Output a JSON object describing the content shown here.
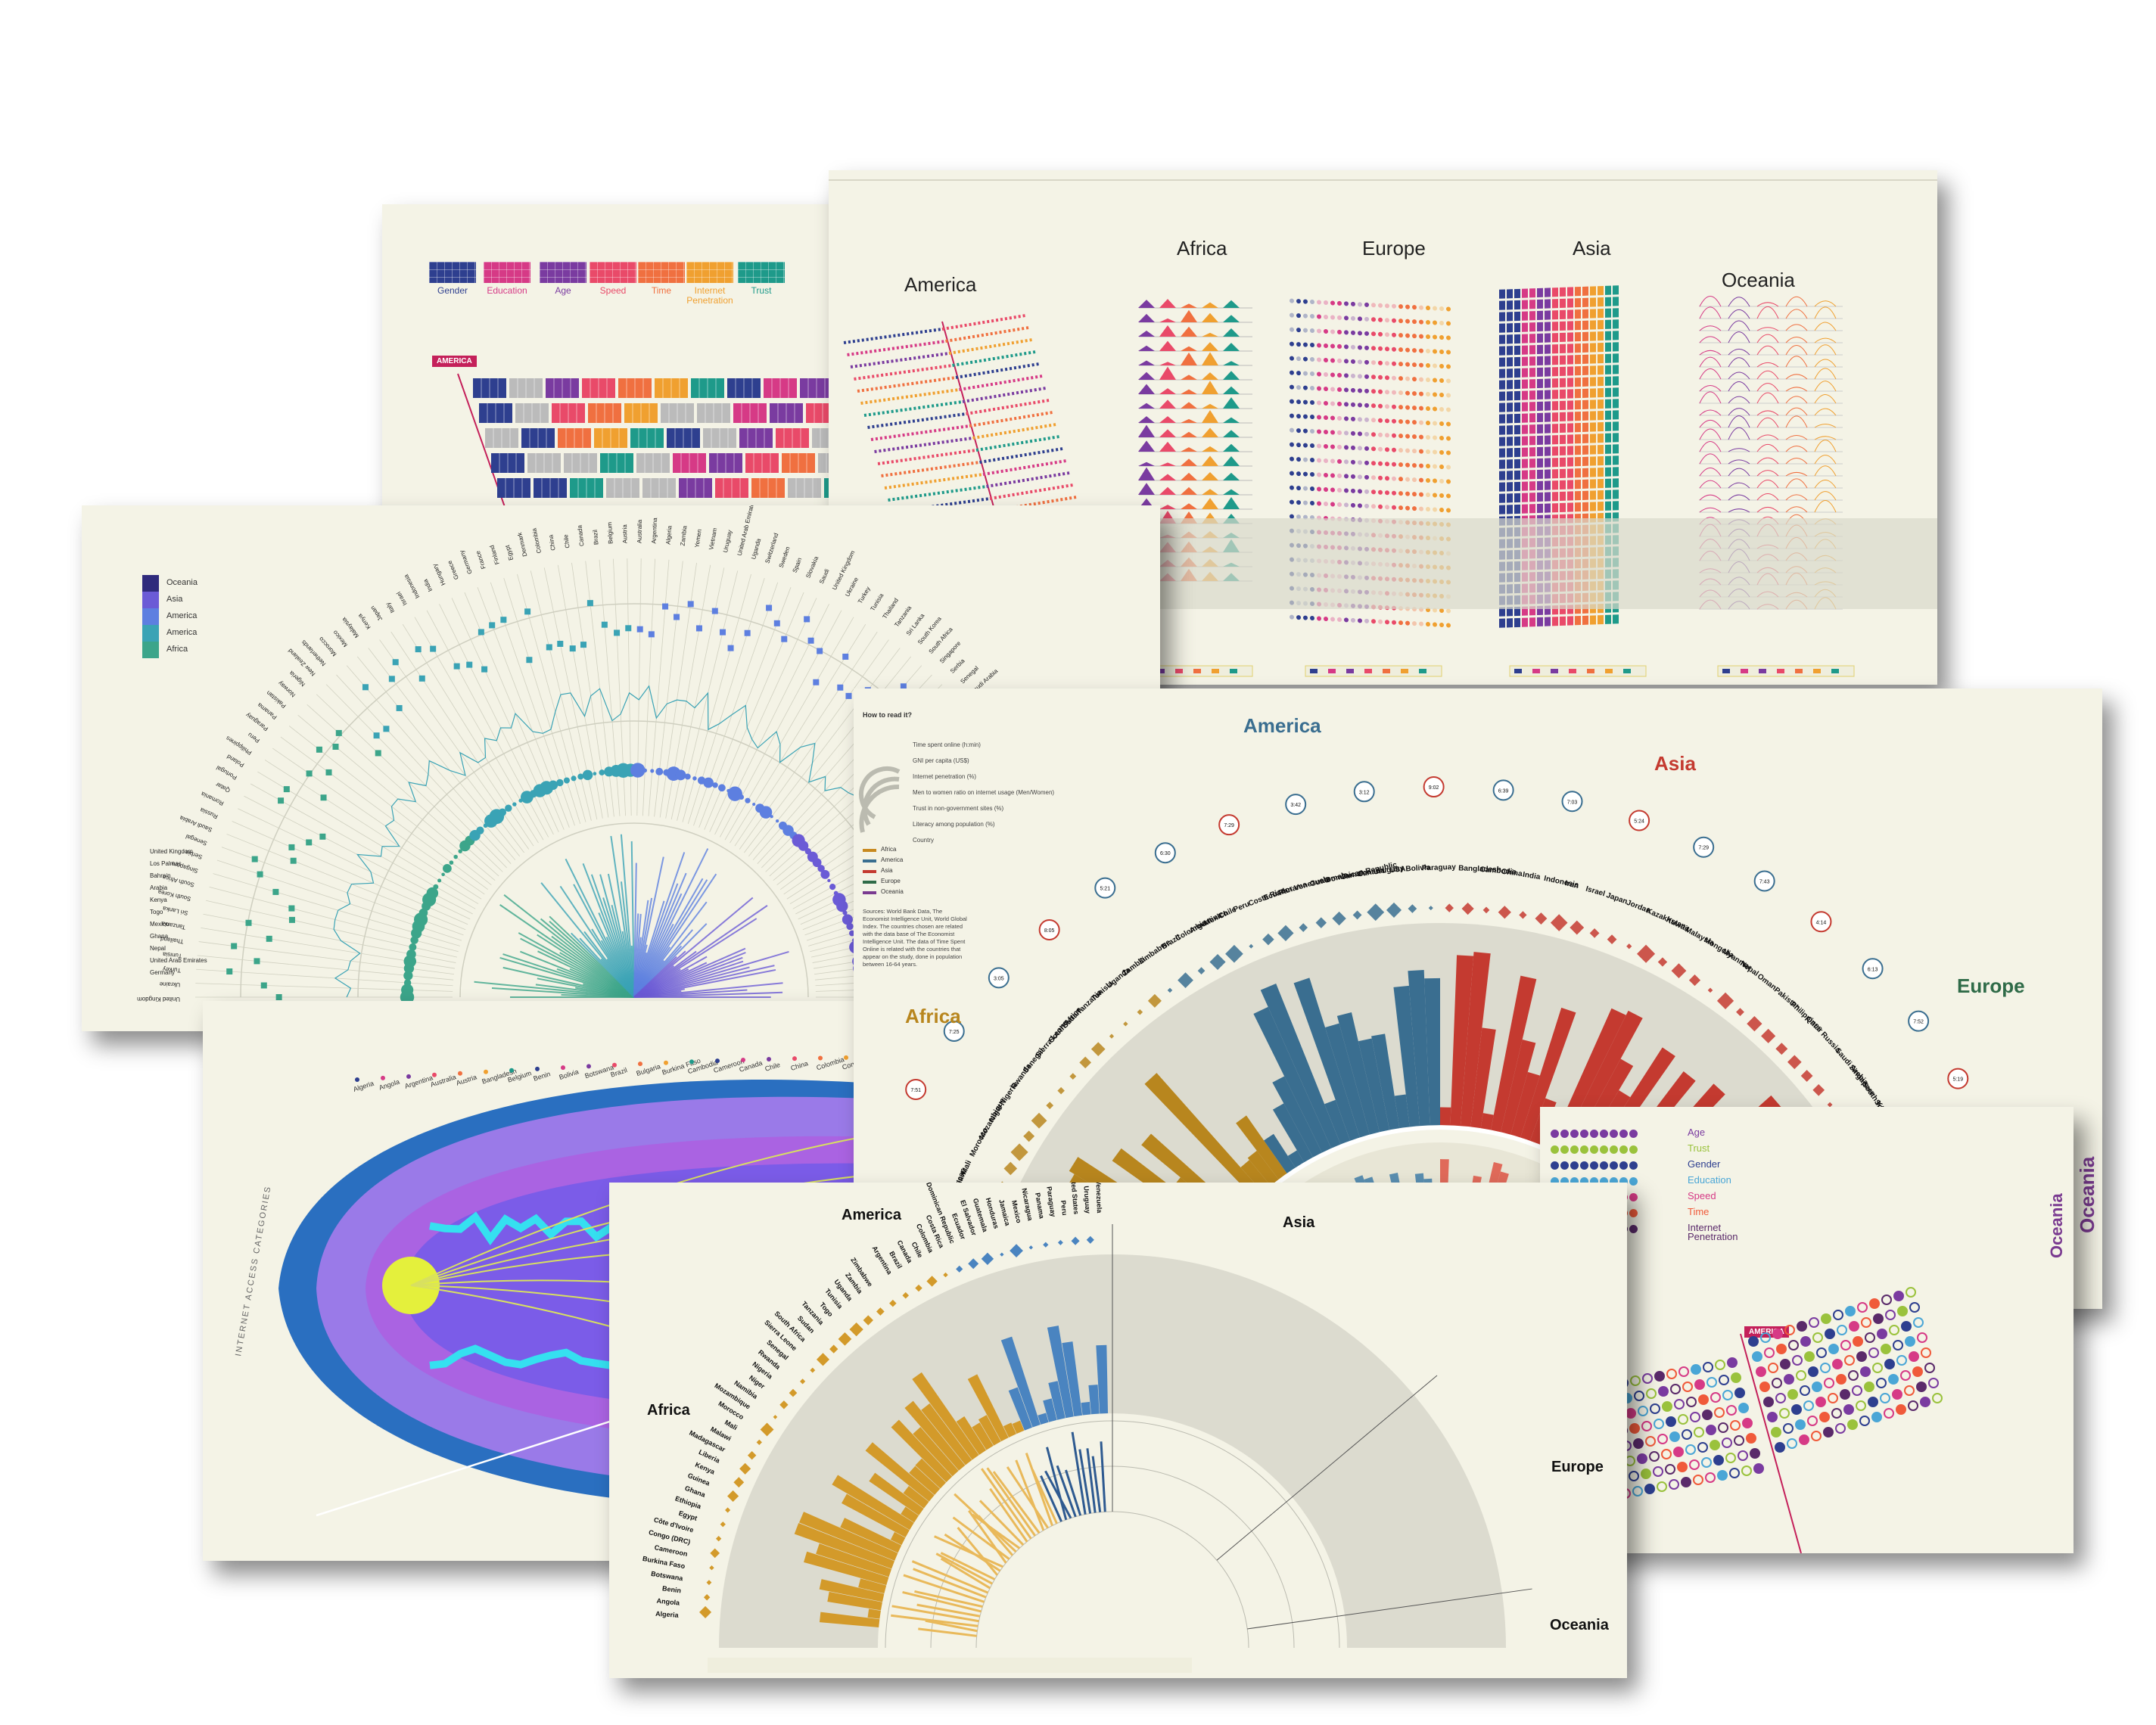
{
  "card_a": {
    "categories": [
      {
        "label": "Gender",
        "color": "#2e3f8f"
      },
      {
        "label": "Education",
        "color": "#d63a86"
      },
      {
        "label": "Age",
        "color": "#7a3ba0"
      },
      {
        "label": "Speed",
        "color": "#e94a69"
      },
      {
        "label": "Time",
        "color": "#f07040"
      },
      {
        "label": "Internet Penetration",
        "color": "#f0a030"
      },
      {
        "label": "Trust",
        "color": "#1e9a8a"
      }
    ],
    "tag": "AMERICA"
  },
  "card_b": {
    "regions": [
      "America",
      "Africa",
      "Europe",
      "Asia",
      "Oceania"
    ]
  },
  "card_c": {
    "legend": [
      {
        "label": "Oceania",
        "color": "#2f2a7c"
      },
      {
        "label": "Asia",
        "color": "#6b5bd6"
      },
      {
        "label": "America",
        "color": "#5d7fe0"
      },
      {
        "label": "America",
        "color": "#3aa3b5"
      },
      {
        "label": "Africa",
        "color": "#3ca58a"
      }
    ],
    "countries": [
      "United Kingdom",
      "Ukraine",
      "Turkey",
      "Tunisia",
      "Thailand",
      "Tanzania",
      "Sri Lanka",
      "South Korea",
      "South Africa",
      "Singapore",
      "Serbia",
      "Senegal",
      "Saudi Arabia",
      "Russia",
      "Romania",
      "Qatar",
      "Portugal",
      "Poland",
      "Philippines",
      "Peru",
      "Paraguay",
      "Panama",
      "Pakistan",
      "Norway",
      "Nigeria",
      "New Zealand",
      "Netherlands",
      "Morocco",
      "Mexico",
      "Malaysia",
      "Kenya",
      "Japan",
      "Italy",
      "Israel",
      "Indonesia",
      "India",
      "Hungary",
      "Greece",
      "Germany",
      "France",
      "Finland",
      "Egypt",
      "Denmark",
      "Colombia",
      "China",
      "Chile",
      "Canada",
      "Brazil",
      "Belgium",
      "Austria",
      "Australia",
      "Argentina",
      "Algeria",
      "Zambia",
      "Yemen",
      "Vietnam",
      "Uruguay",
      "United Arab Emirates",
      "Uganda",
      "Switzerland",
      "Sweden",
      "Spain",
      "Slovakia",
      "Saudi"
    ],
    "left_labels": [
      "United Kingdom",
      "Los Palmas",
      "Bahrain",
      "Arabia",
      "Kenya",
      "Togo",
      "Mexico",
      "Ghana",
      "Nepal",
      "United Arab Emirates",
      "Germany"
    ]
  },
  "card_d": {
    "side_label": "INTERNET ACCESS CATEGORIES",
    "countries": [
      "Algeria",
      "Angola",
      "Argentina",
      "Australia",
      "Austria",
      "Bangladesh",
      "Belgium",
      "Benin",
      "Bolivia",
      "Botswana",
      "Brazil",
      "Bulgaria",
      "Burkina Faso",
      "Cambodia",
      "Cameroon",
      "Canada",
      "Chile",
      "China",
      "Colombia",
      "Congo (DRC)",
      "Costa Rica",
      "Côte d'Ivoire"
    ]
  },
  "card_e": {
    "how_to_read": "How to read it?",
    "guide": [
      "Time spent online (h:min)",
      "GNI per capita (US$)",
      "Internet penetration (%)",
      "Men to women ratio on internet usage (Men/Women)",
      "Trust in non-government sites (%)",
      "Literacy among population (%)",
      "Country"
    ],
    "legend": [
      {
        "label": "Africa",
        "color": "#c88a20"
      },
      {
        "label": "America",
        "color": "#3a6e90"
      },
      {
        "label": "Asia",
        "color": "#c43a30"
      },
      {
        "label": "Europe",
        "color": "#2f6b48"
      },
      {
        "label": "Oceania",
        "color": "#7a3a90"
      }
    ],
    "sources": "Sources: World Bank Data, The Economist Intelligence Unit, World Global Index. The countries chosen are related with the data base of The Economist Intelligence Unit. The data of Time Spent Online is related with the countries that appear on the study, done in population between 16-64 years.",
    "regions": {
      "america": "America",
      "asia": "Asia",
      "africa": "Africa",
      "europe": "Europe",
      "oceania": "Oceania"
    },
    "america_countries": [
      "Brazil",
      "Colombia",
      "Argentina",
      "Mexico",
      "Chile",
      "Peru",
      "Costa Rica",
      "Ecuador",
      "Panama",
      "Venezuela",
      "Guatemala",
      "Dominican Republic",
      "Jamaica",
      "Canada",
      "Uruguay",
      "USA",
      "Bolivia",
      "Paraguay"
    ],
    "asia_countries": [
      "Bangladesh",
      "Cambodia",
      "China",
      "India",
      "Indonesia",
      "Iran",
      "Israel",
      "Japan",
      "Jordan",
      "Kazakhstan",
      "Kuwait",
      "Malaysia",
      "Mongolia",
      "Myanmar",
      "Nepal",
      "Oman",
      "Pakistan",
      "Philippines",
      "Qatar",
      "Russia",
      "Saudi Arabia",
      "Singapore",
      "South Korea",
      "Sri Lanka",
      "Taiwan",
      "Thailand",
      "Turkey",
      "United Arab Emirates",
      "Vietnam"
    ],
    "europe_countries": [
      "Austria",
      "Belgium",
      "Bulgaria",
      "Czech Republic",
      "Denmark",
      "Estonia",
      "Finland",
      "France",
      "Germany",
      "Greece",
      "Hungary",
      "Ireland"
    ],
    "africa_countries": [
      "Côte d'Ivoire",
      "Egypt",
      "Ethiopia",
      "Ghana",
      "Guinea",
      "Kenya",
      "Liberia",
      "Madagascar",
      "Malawi",
      "Mali",
      "Morocco",
      "Mozambique",
      "Niger",
      "Nigeria",
      "Rwanda",
      "Senegal",
      "Sierra Leone",
      "South Africa",
      "Sudan",
      "Tanzania",
      "Tunisia",
      "Uganda",
      "Zambia",
      "Zimbabwe"
    ],
    "badges": [
      "7:51",
      "7:25",
      "3:05",
      "8:05",
      "5:21",
      "6:30",
      "7:29",
      "3:42",
      "3:12",
      "9:02",
      "6:39",
      "7:03",
      "5:24",
      "7:29",
      "7:43",
      "4:14",
      "6:13",
      "7:52",
      "5:19",
      "3:28",
      "5:14"
    ]
  },
  "card_f": {
    "legend": [
      {
        "label": "Age",
        "color": "#7a3ba0"
      },
      {
        "label": "Trust",
        "color": "#9ac23c"
      },
      {
        "label": "Gender",
        "color": "#2e3f8f"
      },
      {
        "label": "Education",
        "color": "#4aa6d6"
      },
      {
        "label": "Speed",
        "color": "#d63a86"
      },
      {
        "label": "Time",
        "color": "#f05a3a"
      },
      {
        "label": "Internet Penetration",
        "color": "#5a2a6a"
      }
    ],
    "tag": "AMERICA",
    "side_label": "Oceania"
  },
  "card_g": {
    "regions": {
      "america": "America",
      "asia": "Asia",
      "africa": "Africa",
      "europe": "Europe",
      "oceania": "Oceania"
    },
    "america_countries": [
      "Argentina",
      "Brazil",
      "Canada",
      "Chile",
      "Colombia",
      "Costa Rica",
      "Dominican Republic",
      "Ecuador",
      "El Salvador",
      "Guatemala",
      "Honduras",
      "Jamaica",
      "Mexico",
      "Nicaragua",
      "Panama",
      "Paraguay",
      "Peru",
      "United States",
      "Uruguay",
      "Venezuela"
    ],
    "africa_countries": [
      "Algeria",
      "Angola",
      "Benin",
      "Botswana",
      "Burkina Faso",
      "Cameroon",
      "Congo (DRC)",
      "Côte d'Ivoire",
      "Egypt",
      "Ethiopia",
      "Ghana",
      "Guinea",
      "Kenya",
      "Liberia",
      "Madagascar",
      "Malawi",
      "Mali",
      "Morocco",
      "Mozambique",
      "Namibia",
      "Niger",
      "Nigeria",
      "Rwanda",
      "Senegal",
      "Sierra Leone",
      "South Africa",
      "Sudan",
      "Tanzania",
      "Togo",
      "Tunisia",
      "Uganda",
      "Zambia",
      "Zimbabwe"
    ]
  }
}
